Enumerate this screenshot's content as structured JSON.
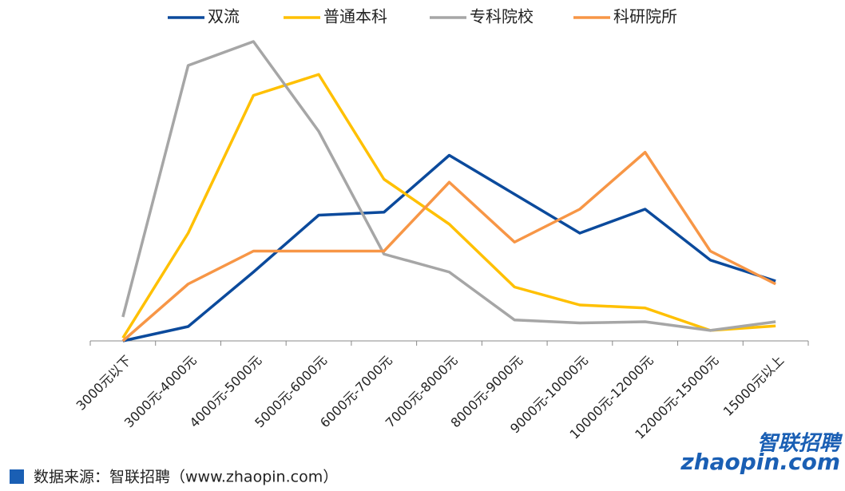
{
  "chart_data": {
    "type": "line",
    "categories": [
      "3000元以下",
      "3000元-4000元",
      "4000元-5000元",
      "5000元-6000元",
      "6000元-7000元",
      "7000元-8000元",
      "8000元-9000元",
      "9000元-10000元",
      "10000元-12000元",
      "12000元-15000元",
      "15000元以上"
    ],
    "series": [
      {
        "name": "双流",
        "color": "#0b4a9c",
        "values": [
          0,
          4.8,
          23,
          42,
          43,
          62,
          49,
          36,
          44,
          27,
          20
        ]
      },
      {
        "name": "普通本科",
        "color": "#ffc000",
        "values": [
          1,
          36,
          82,
          89,
          54,
          39,
          18,
          12,
          11,
          3.5,
          5
        ]
      },
      {
        "name": "专科院校",
        "color": "#a6a6a6",
        "values": [
          8,
          92,
          100,
          70,
          29,
          23,
          7,
          6,
          6.4,
          3.5,
          6.4
        ]
      },
      {
        "name": "科研院所",
        "color": "#f79646",
        "values": [
          0,
          19,
          30,
          30,
          30,
          53,
          33,
          44,
          63,
          30,
          19
        ]
      }
    ],
    "legend": "top",
    "source": "数据来源：智联招聘（www.zhaopin.com）",
    "logo": {
      "top": "智联招聘",
      "bottom": "zhaopin.com"
    }
  }
}
